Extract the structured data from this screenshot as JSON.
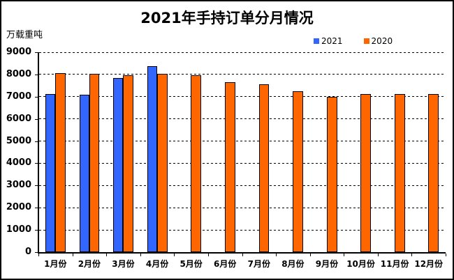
{
  "title": "2021年手持订单分月情况",
  "unit_label": "万载重吨",
  "legend": {
    "items": [
      {
        "label": "2021",
        "color": "#3366FF"
      },
      {
        "label": "2020",
        "color": "#FF6600"
      }
    ]
  },
  "chart_data": {
    "type": "bar",
    "title": "2021年手持订单分月情况",
    "ylabel": "万载重吨",
    "xlabel": "",
    "categories": [
      "1月份",
      "2月份",
      "3月份",
      "4月份",
      "5月份",
      "6月份",
      "7月份",
      "8月份",
      "9月份",
      "10月份",
      "11月份",
      "12月份"
    ],
    "series": [
      {
        "name": "2021",
        "color": "#3366FF",
        "values": [
          7110,
          7090,
          7835,
          8380,
          null,
          null,
          null,
          null,
          null,
          null,
          null,
          null
        ]
      },
      {
        "name": "2020",
        "color": "#FF6600",
        "values": [
          8070,
          8030,
          7960,
          8040,
          7970,
          7650,
          7550,
          7250,
          7000,
          7110,
          7120,
          7110
        ]
      }
    ],
    "ylim": [
      0,
      9000
    ],
    "yticks": [
      0,
      1000,
      2000,
      3000,
      4000,
      5000,
      6000,
      7000,
      8000,
      9000
    ],
    "grid": "horizontal-dashed",
    "legend_position": "top-right",
    "bar_border_color": "#000000",
    "background_color": "#FFFFFF"
  }
}
